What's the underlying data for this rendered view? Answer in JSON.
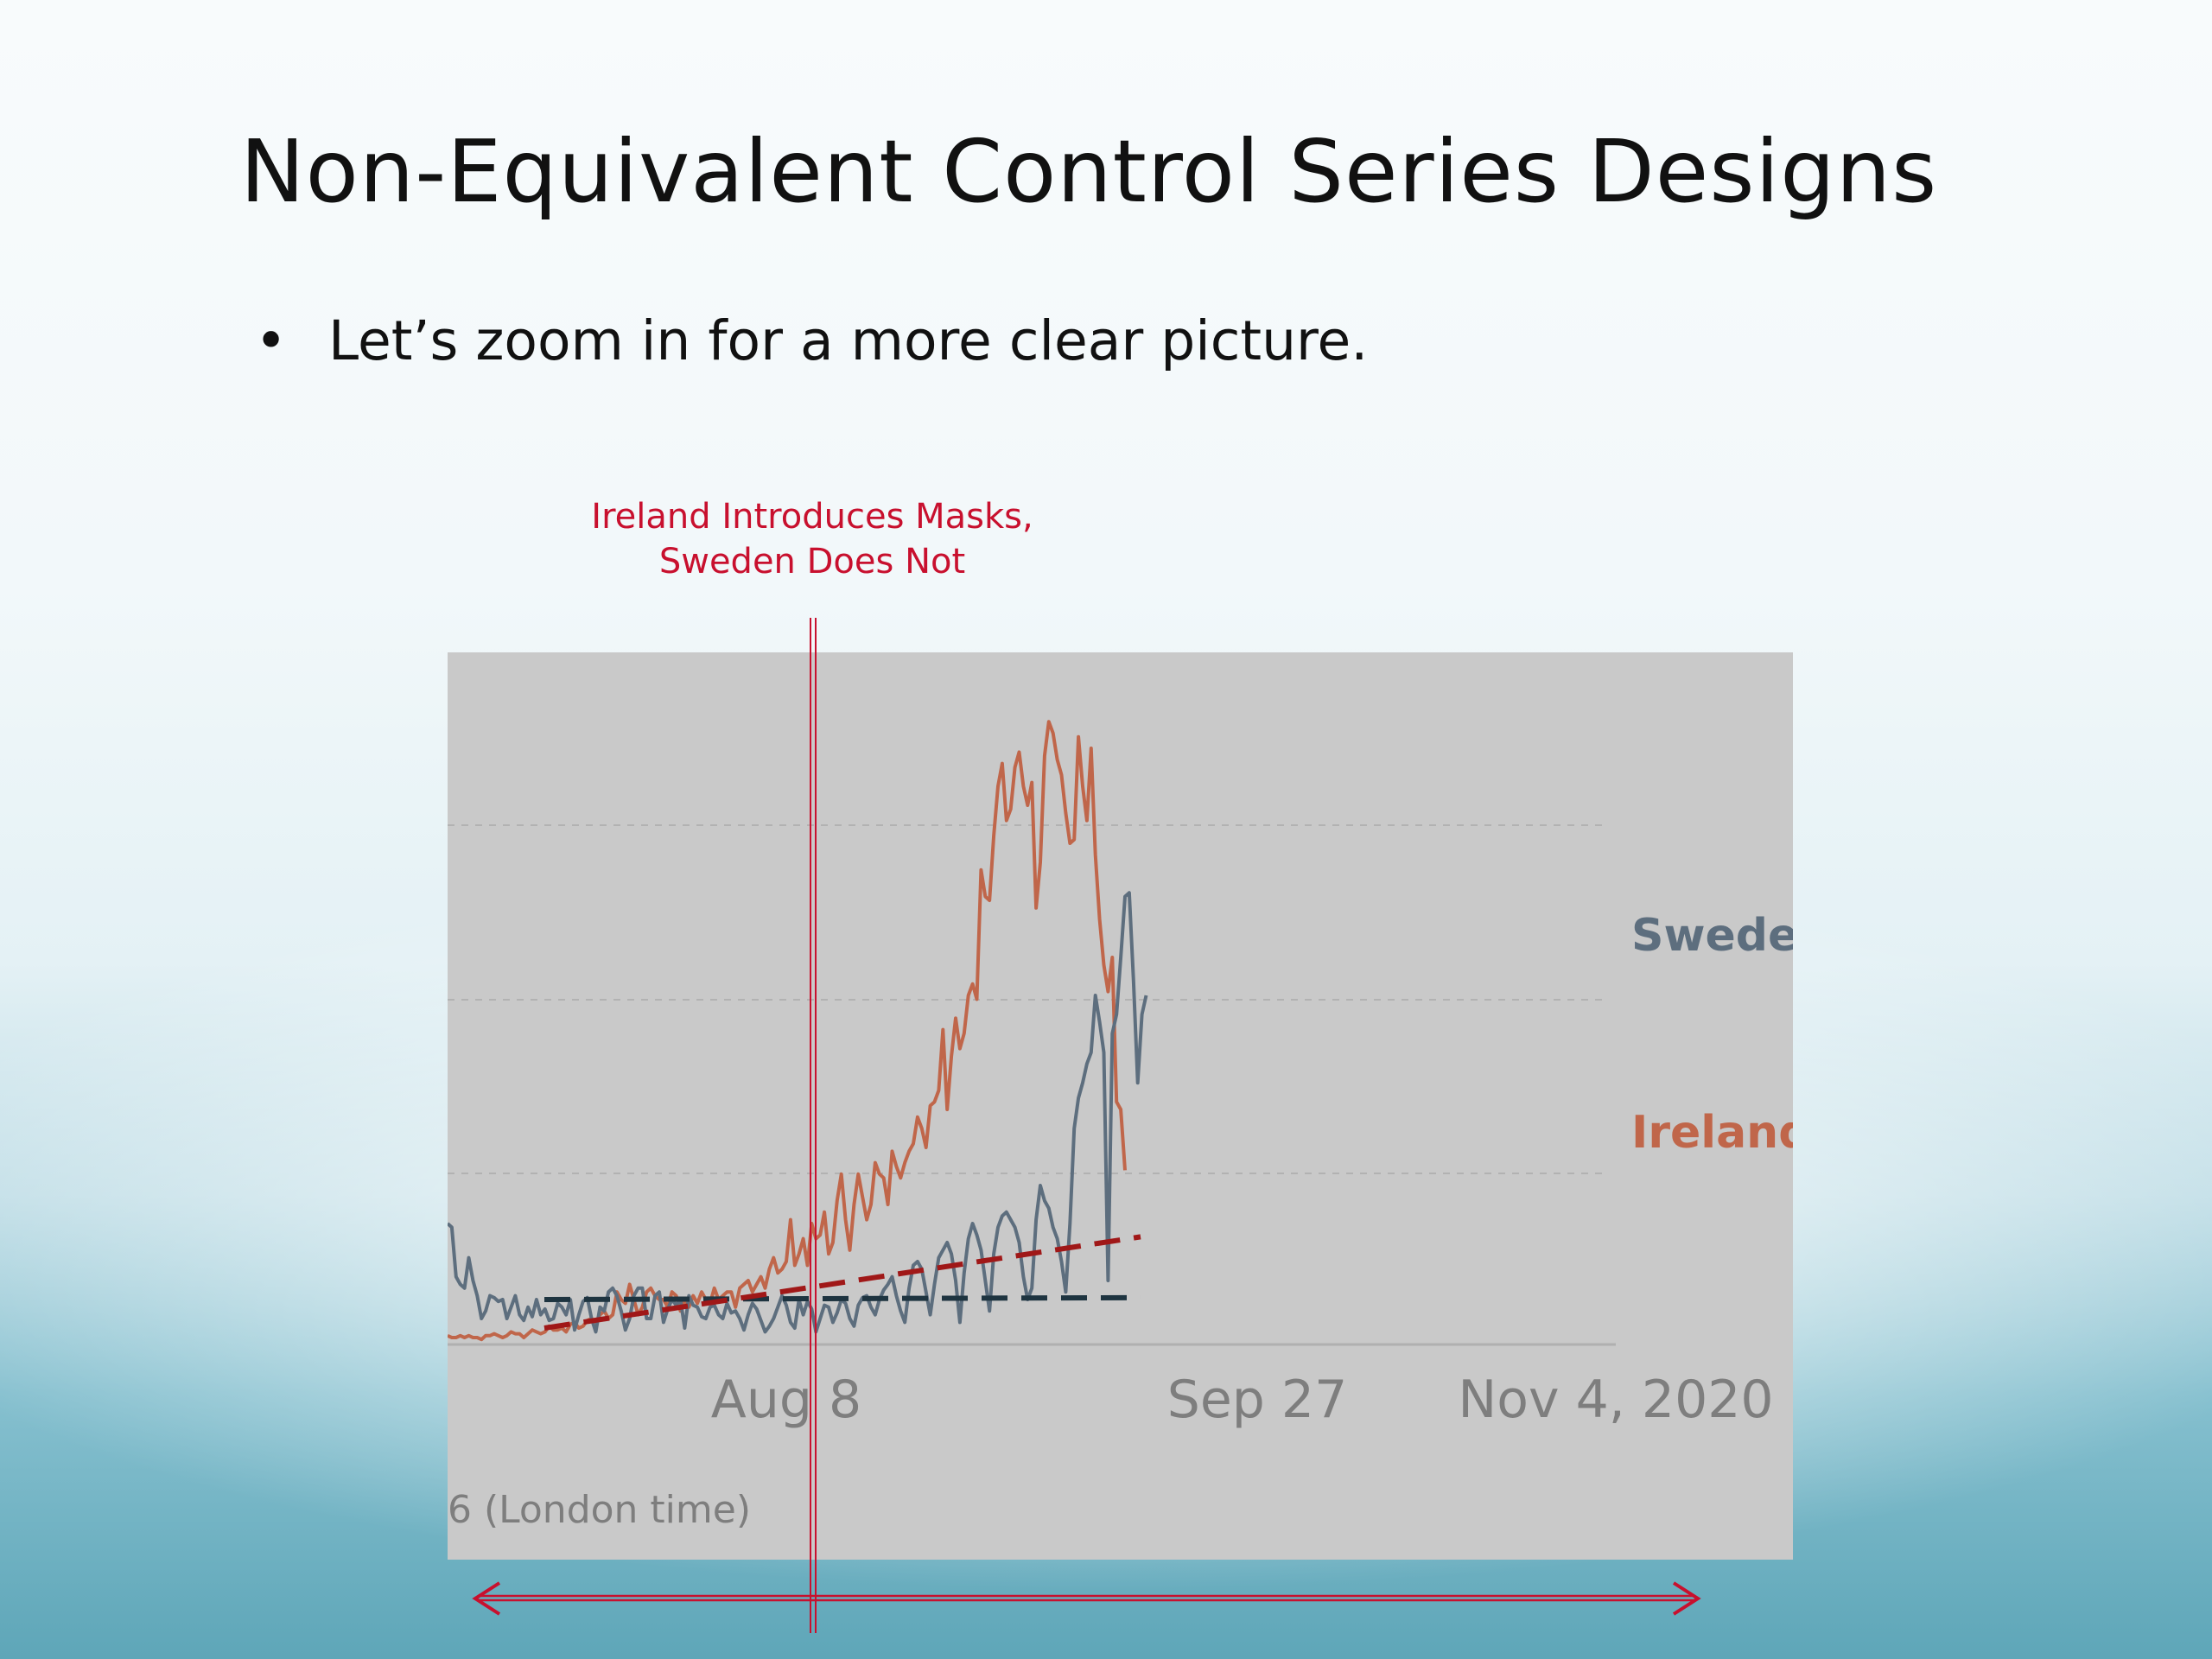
{
  "slide": {
    "title": "Non-Equivalent Control Series Designs",
    "bullet": "Let’s zoom in for a more clear picture.",
    "annotation_lines": [
      "Ireland Introduces Masks,",
      "Sweden Does Not"
    ]
  },
  "colors": {
    "ireland": "#c0664a",
    "sweden": "#5d6e7e",
    "annotation_red": "#c8102e",
    "trend_ireland": "#a01818",
    "trend_sweden": "#1e3440",
    "chart_background": "#c9c9c9"
  },
  "chart_data": {
    "type": "line",
    "x_ticks": [
      "Aug 8",
      "Sep 27",
      "Nov 4, 2020"
    ],
    "footer_text": "6 (London time)",
    "series": [
      {
        "name": "Sweden",
        "values": [
          60,
          58,
          32,
          28,
          26,
          42,
          30,
          22,
          10,
          14,
          22,
          21,
          19,
          20,
          10,
          16,
          22,
          12,
          9,
          16,
          11,
          20,
          12,
          15,
          9,
          10,
          18,
          16,
          12,
          20,
          4,
          12,
          19,
          21,
          10,
          3,
          16,
          14,
          24,
          26,
          22,
          14,
          4,
          10,
          22,
          26,
          26,
          10,
          10,
          22,
          24,
          8,
          15,
          20,
          17,
          20,
          5,
          22,
          17,
          16,
          11,
          10,
          16,
          17,
          12,
          10,
          18,
          13,
          14,
          10,
          4,
          12,
          18,
          15,
          9,
          3,
          6,
          10,
          16,
          22,
          17,
          8,
          5,
          20,
          12,
          19,
          15,
          3,
          10,
          17,
          16,
          8,
          13,
          20,
          18,
          10,
          6,
          17,
          21,
          22,
          16,
          12,
          20,
          25,
          28,
          32,
          22,
          14,
          8,
          26,
          38,
          40,
          36,
          24,
          12,
          28,
          42,
          46,
          50,
          44,
          30,
          8,
          34,
          52,
          60,
          54,
          46,
          30,
          14,
          44,
          58,
          64,
          66,
          62,
          58,
          50,
          32,
          20,
          26,
          62,
          80,
          72,
          68,
          58,
          52,
          40,
          24,
          60,
          110,
          126,
          134,
          144,
          150,
          180,
          166,
          150,
          30,
          160,
          170,
          200,
          232,
          234,
          188,
          134,
          170,
          180
        ]
      },
      {
        "name": "Ireland",
        "values": [
          1,
          0,
          0,
          1,
          0,
          1,
          0,
          0,
          -1,
          1,
          1,
          2,
          1,
          0,
          1,
          3,
          2,
          2,
          0,
          2,
          4,
          3,
          2,
          3,
          6,
          4,
          4,
          5,
          3,
          7,
          8,
          5,
          6,
          9,
          10,
          8,
          12,
          14,
          10,
          12,
          24,
          20,
          18,
          28,
          20,
          12,
          16,
          24,
          26,
          22,
          20,
          20,
          16,
          24,
          22,
          14,
          20,
          16,
          22,
          18,
          24,
          20,
          18,
          26,
          20,
          22,
          24,
          24,
          16,
          26,
          28,
          30,
          24,
          28,
          32,
          26,
          36,
          42,
          34,
          36,
          40,
          62,
          38,
          44,
          52,
          38,
          60,
          52,
          54,
          66,
          44,
          50,
          72,
          86,
          62,
          46,
          70,
          86,
          74,
          62,
          70,
          92,
          86,
          84,
          70,
          98,
          90,
          84,
          92,
          98,
          102,
          116,
          110,
          100,
          122,
          124,
          130,
          162,
          120,
          148,
          168,
          152,
          160,
          180,
          186,
          178,
          246,
          232,
          230,
          264,
          290,
          302,
          272,
          278,
          300,
          308,
          290,
          280,
          292,
          226,
          250,
          306,
          324,
          318,
          304,
          296,
          276,
          260,
          262,
          316,
          290,
          272,
          310,
          254,
          220,
          196,
          182,
          200,
          124,
          120,
          88
        ]
      }
    ],
    "series_labels": [
      "Sweden",
      "Ireland"
    ],
    "y_axis": "hidden",
    "grid": "horizontal dashed",
    "overlays": [
      {
        "type": "vertical_line",
        "label": "Ireland Introduces Masks, Sweden Does Not",
        "at": "Aug 8"
      },
      {
        "type": "dashed_trend",
        "series": "Sweden",
        "from": 20,
        "to": 21
      },
      {
        "type": "dashed_trend",
        "series": "Ireland",
        "from": 5,
        "to": 53
      },
      {
        "type": "double_arrow",
        "span": "full chart width"
      }
    ]
  }
}
